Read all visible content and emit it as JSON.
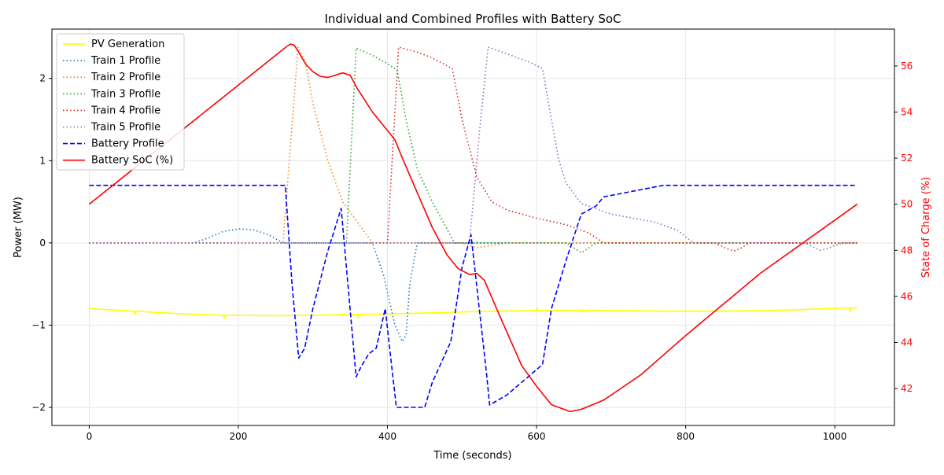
{
  "chart_data": {
    "type": "line",
    "title": "Individual and Combined Profiles with Battery SoC",
    "xlabel": "Time (seconds)",
    "ylabel": "Power (MW)",
    "ylabel_right": "State of Charge (%)",
    "xlim": [
      -50,
      1080
    ],
    "ylim": [
      -2.22,
      2.6
    ],
    "ylim_right": [
      40.4,
      57.6
    ],
    "x_ticks": [
      0,
      200,
      400,
      600,
      800,
      1000
    ],
    "y_ticks": [
      -2,
      -1,
      0,
      1,
      2
    ],
    "y_ticks_right": [
      42,
      44,
      46,
      48,
      50,
      52,
      54,
      56
    ],
    "grid": true,
    "legend_position": "upper-left",
    "right_axis_color": "#ff0000",
    "series": [
      {
        "name": "PV Generation",
        "axis": "left",
        "color": "#ffff00",
        "style": "solid",
        "x": [
          0,
          1,
          60,
          61,
          62,
          120,
          180,
          181,
          182,
          250,
          300,
          360,
          361,
          362,
          420,
          480,
          540,
          600,
          601,
          602,
          660,
          661,
          662,
          720,
          780,
          840,
          900,
          960,
          1020,
          1021,
          1022,
          1030
        ],
        "y": [
          -0.78,
          -0.8,
          -0.83,
          -0.87,
          -0.83,
          -0.86,
          -0.88,
          -0.92,
          -0.88,
          -0.885,
          -0.88,
          -0.87,
          -0.91,
          -0.87,
          -0.86,
          -0.845,
          -0.83,
          -0.825,
          -0.79,
          -0.825,
          -0.82,
          -0.84,
          -0.82,
          -0.825,
          -0.83,
          -0.83,
          -0.825,
          -0.81,
          -0.79,
          -0.83,
          -0.79,
          -0.79
        ]
      },
      {
        "name": "Train 1 Profile",
        "axis": "left",
        "color": "#1f77b4",
        "style": "dotted",
        "x": [
          0,
          140,
          160,
          180,
          200,
          220,
          240,
          260,
          262,
          380,
          395,
          410,
          420,
          425,
          430,
          440,
          1030
        ],
        "y": [
          0,
          0,
          0.06,
          0.14,
          0.17,
          0.16,
          0.1,
          0,
          0,
          0,
          -0.4,
          -1.0,
          -1.2,
          -1.12,
          -0.5,
          0,
          0
        ]
      },
      {
        "name": "Train 2 Profile",
        "axis": "left",
        "color": "#ff7f0e",
        "style": "dotted",
        "x": [
          0,
          260,
          270,
          280,
          290,
          300,
          320,
          340,
          360,
          380,
          400,
          500,
          520,
          560,
          1030
        ],
        "y": [
          0,
          0,
          1.2,
          2.38,
          2.2,
          1.7,
          1.0,
          0.5,
          0.25,
          0,
          0,
          0,
          -0.06,
          0,
          0
        ]
      },
      {
        "name": "Train 3 Profile",
        "axis": "left",
        "color": "#2ca02c",
        "style": "dotted",
        "x": [
          0,
          345,
          358,
          380,
          400,
          413,
          425,
          440,
          460,
          490,
          520,
          640,
          660,
          680,
          1030
        ],
        "y": [
          0,
          0,
          2.37,
          2.28,
          2.18,
          2.1,
          1.5,
          0.9,
          0.5,
          0,
          0,
          0,
          -0.12,
          0,
          0
        ]
      },
      {
        "name": "Train 4 Profile",
        "axis": "left",
        "color": "#d62728",
        "style": "dotted",
        "x": [
          0,
          400,
          415,
          440,
          460,
          487,
          500,
          520,
          540,
          560,
          600,
          640,
          670,
          690,
          700,
          840,
          855,
          865,
          875,
          885,
          1030
        ],
        "y": [
          0,
          0,
          2.38,
          2.32,
          2.25,
          2.12,
          1.5,
          0.8,
          0.5,
          0.4,
          0.3,
          0.22,
          0.12,
          0,
          0,
          0,
          -0.07,
          -0.1,
          -0.06,
          0,
          0
        ]
      },
      {
        "name": "Train 5 Profile",
        "axis": "left",
        "color": "#9467bd",
        "style": "dotted",
        "x": [
          0,
          510,
          525,
          535,
          560,
          590,
          608,
          620,
          630,
          640,
          660,
          700,
          760,
          790,
          810,
          960,
          980,
          990,
          1000,
          1010,
          1030
        ],
        "y": [
          0,
          0,
          1.5,
          2.38,
          2.3,
          2.2,
          2.12,
          1.5,
          1.0,
          0.72,
          0.48,
          0.35,
          0.25,
          0.15,
          0,
          0,
          -0.09,
          -0.07,
          -0.03,
          0,
          0
        ]
      },
      {
        "name": "Battery Profile",
        "axis": "left",
        "color": "#0000ff",
        "style": "dashed",
        "x": [
          0,
          263,
          272,
          281,
          289,
          300,
          320,
          338,
          358,
          365,
          375,
          385,
          397,
          407,
          412,
          450,
          460,
          485,
          500,
          512,
          517,
          533,
          537,
          560,
          608,
          620,
          640,
          660,
          680,
          690,
          770,
          1030
        ],
        "y": [
          0.7,
          0.7,
          -0.5,
          -1.4,
          -1.28,
          -0.8,
          -0.1,
          0.42,
          -1.63,
          -1.5,
          -1.35,
          -1.28,
          -0.8,
          -1.6,
          -2.0,
          -2.0,
          -1.7,
          -1.2,
          -0.3,
          0.1,
          -0.3,
          -1.6,
          -1.97,
          -1.85,
          -1.48,
          -0.8,
          -0.2,
          0.35,
          0.45,
          0.56,
          0.7,
          0.7
        ]
      },
      {
        "name": "Battery SoC (%)",
        "axis": "right",
        "color": "#ff0000",
        "style": "solid",
        "x": [
          0,
          265,
          270,
          275,
          280,
          290,
          300,
          310,
          320,
          330,
          340,
          350,
          360,
          380,
          400,
          410,
          420,
          440,
          460,
          480,
          495,
          510,
          520,
          530,
          550,
          580,
          600,
          620,
          645,
          660,
          690,
          740,
          800,
          900,
          1030
        ],
        "y": [
          50.0,
          56.85,
          56.95,
          56.9,
          56.65,
          56.1,
          55.75,
          55.55,
          55.5,
          55.6,
          55.7,
          55.6,
          55.0,
          54.0,
          53.2,
          52.8,
          52.0,
          50.5,
          49.0,
          47.8,
          47.2,
          46.95,
          47.0,
          46.7,
          45.2,
          43.0,
          42.1,
          41.3,
          41.0,
          41.1,
          41.5,
          42.6,
          44.3,
          47.0,
          50.0
        ]
      }
    ]
  }
}
